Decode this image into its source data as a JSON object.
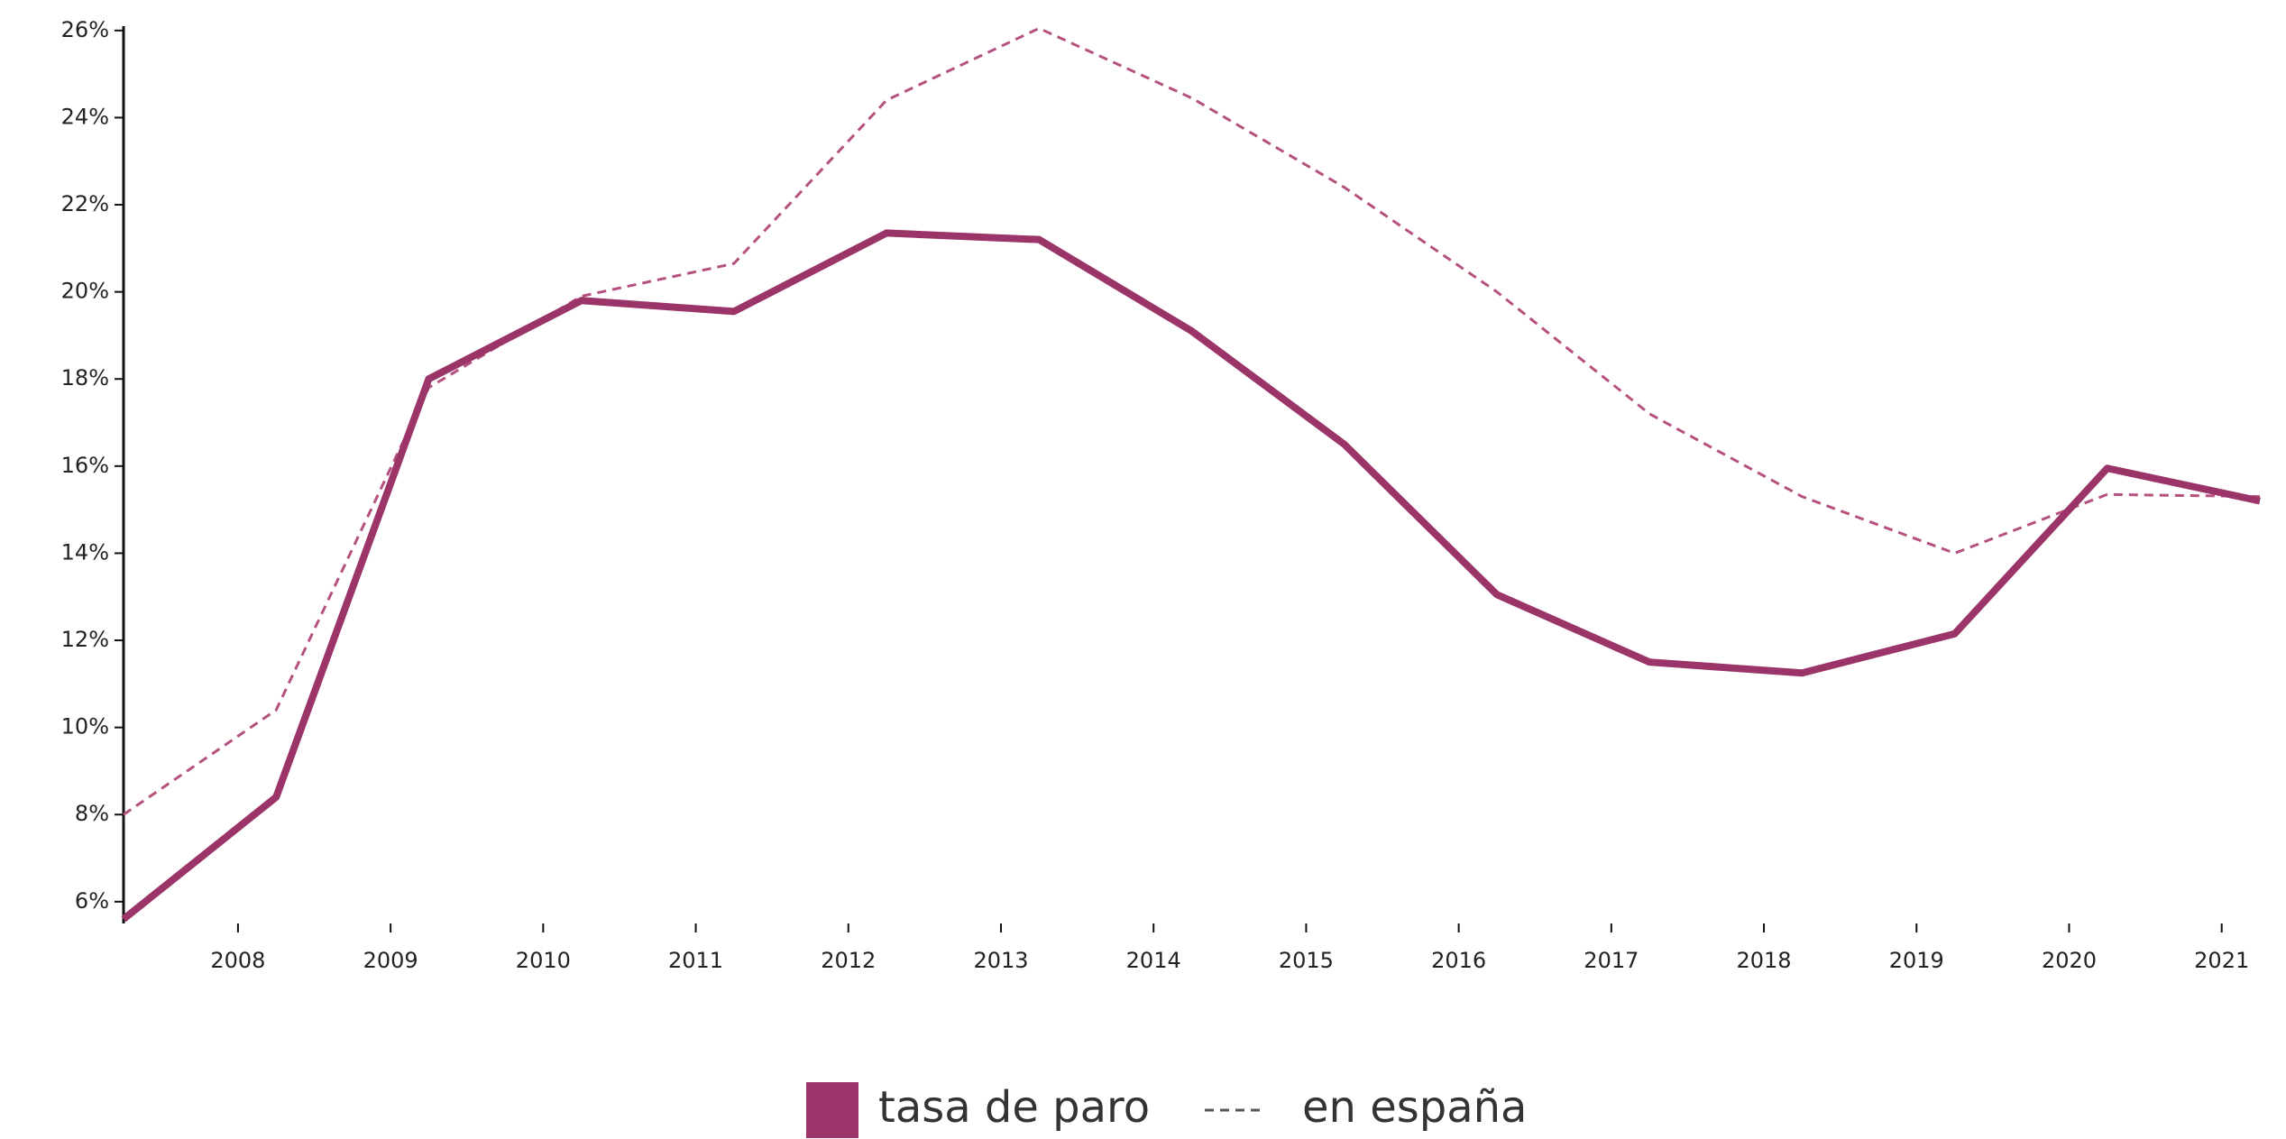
{
  "chart_data": {
    "type": "line",
    "x": [
      2007.25,
      2008.25,
      2009.25,
      2010.25,
      2011.25,
      2012.25,
      2013.25,
      2014.25,
      2015.25,
      2016.25,
      2017.25,
      2018.25,
      2019.25,
      2020.25,
      2021.25
    ],
    "series": [
      {
        "name": "tasa de paro",
        "color": "#9b3468",
        "style": "solid",
        "values": [
          5.6,
          8.4,
          18.0,
          19.8,
          19.55,
          21.35,
          21.2,
          19.1,
          16.5,
          13.05,
          11.5,
          11.25,
          12.15,
          15.95,
          15.2
        ]
      },
      {
        "name": "en españa",
        "color": "#b5517f",
        "style": "dashed",
        "values": [
          8.0,
          10.4,
          17.8,
          19.9,
          20.65,
          24.4,
          26.05,
          24.45,
          22.4,
          20.0,
          17.2,
          15.3,
          14.0,
          15.35,
          15.3
        ]
      }
    ],
    "xlim": [
      2007.25,
      2021.25
    ],
    "xticks": [
      2008,
      2009,
      2010,
      2011,
      2012,
      2013,
      2014,
      2015,
      2016,
      2017,
      2018,
      2019,
      2020,
      2021
    ],
    "ylim": [
      5.5,
      26.1
    ],
    "yticks": [
      {
        "value": 6,
        "label": "6%"
      },
      {
        "value": 8,
        "label": "8%"
      },
      {
        "value": 10,
        "label": "10%"
      },
      {
        "value": 12,
        "label": "12%"
      },
      {
        "value": 14,
        "label": "14%"
      },
      {
        "value": 16,
        "label": "16%"
      },
      {
        "value": 18,
        "label": "18%"
      },
      {
        "value": 20,
        "label": "20%"
      },
      {
        "value": 22,
        "label": "22%"
      },
      {
        "value": 24,
        "label": "24%"
      },
      {
        "value": 26,
        "label": "26%"
      }
    ],
    "grid": false
  }
}
